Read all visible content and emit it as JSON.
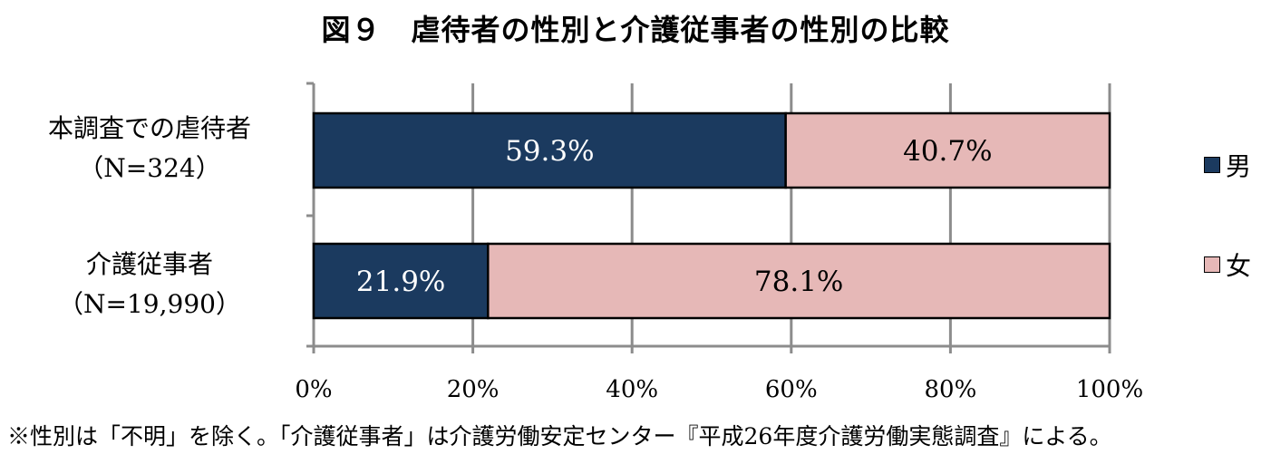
{
  "chart_data": {
    "type": "bar",
    "orientation": "horizontal",
    "stacked": true,
    "title": "図９　虐待者の性別と介護従事者の性別の比較",
    "categories": [
      {
        "line1": "本調査での虐待者",
        "line2": "（N=324）"
      },
      {
        "line1": "介護従事者",
        "line2": "（N=19,990）"
      }
    ],
    "series": [
      {
        "name": "男",
        "values": [
          59.3,
          21.9
        ],
        "labels": [
          "59.3%",
          "21.9%"
        ],
        "color": "#1b3a5f",
        "label_color": "#ffffff"
      },
      {
        "name": "女",
        "values": [
          40.7,
          78.1
        ],
        "labels": [
          "40.7%",
          "78.1%"
        ],
        "color": "#e6b8b7",
        "label_color": "#000000"
      }
    ],
    "xlim": [
      0,
      100
    ],
    "xticks": [
      0,
      20,
      40,
      60,
      80,
      100
    ],
    "xtick_labels": [
      "0%",
      "20%",
      "40%",
      "60%",
      "80%",
      "100%"
    ],
    "grid": true,
    "legend_position": "right"
  },
  "footnote": "※性別は「不明」を除く。「介護従事者」は介護労働安定センター『平成26年度介護労働実態調査』による。"
}
